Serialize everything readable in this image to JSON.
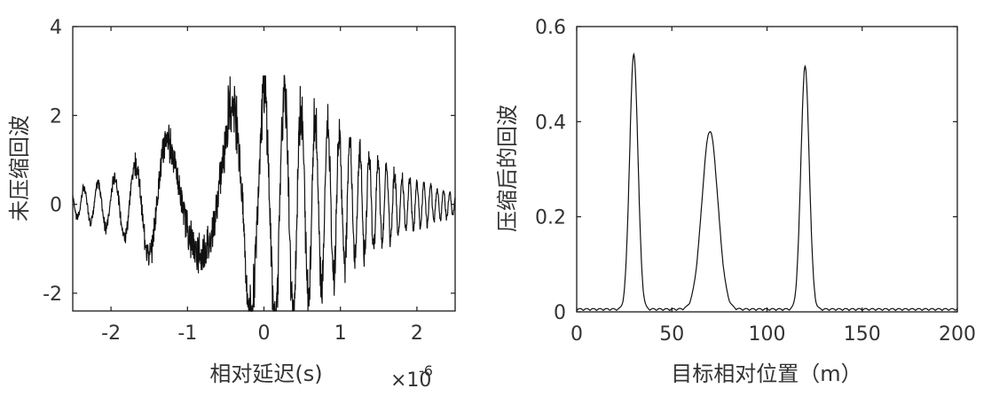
{
  "chart_data": [
    {
      "type": "line",
      "ylabel": "未压缩回波",
      "xlabel": "相对延迟(s)",
      "x_exponent_label": "×10",
      "x_exponent": "-6",
      "xlim": [
        -2.5e-06,
        2.5e-06
      ],
      "ylim": [
        -2.4,
        4
      ],
      "xticks": [
        -2e-06,
        -1e-06,
        0,
        1e-06,
        2e-06
      ],
      "xtick_labels": [
        "-2",
        "-1",
        "0",
        "1",
        "2"
      ],
      "yticks": [
        -2,
        0,
        2,
        4
      ],
      "ytick_labels": [
        "-2",
        "0",
        "2",
        "4"
      ],
      "grid": false,
      "color": "#1a1a1a",
      "series": [
        {
          "description_envelope": [
            [
              -2.5e-06,
              0.3
            ],
            [
              -2e-06,
              0.6
            ],
            [
              -1.7e-06,
              1.0
            ],
            [
              -1.4e-06,
              1.4
            ],
            [
              -1e-06,
              1.9
            ],
            [
              -6e-07,
              2.3
            ],
            [
              -2e-07,
              2.7
            ],
            [
              1e-07,
              2.8
            ],
            [
              3.5e-07,
              2.7
            ],
            [
              6e-07,
              2.3
            ],
            [
              9e-07,
              1.8
            ],
            [
              1.2e-06,
              1.4
            ],
            [
              1.5e-06,
              1.0
            ],
            [
              1.8e-06,
              0.7
            ],
            [
              2.1e-06,
              0.5
            ],
            [
              2.5e-06,
              0.25
            ]
          ]
        }
      ]
    },
    {
      "type": "line",
      "ylabel": "压缩后的回波",
      "xlabel": "目标相对位置（m）",
      "xlim": [
        0,
        200
      ],
      "ylim": [
        0,
        0.6
      ],
      "xticks": [
        0,
        50,
        100,
        150,
        200
      ],
      "xtick_labels": [
        "0",
        "50",
        "100",
        "150",
        "200"
      ],
      "yticks": [
        0,
        0.2,
        0.4,
        0.6
      ],
      "ytick_labels": [
        "0",
        "0.2",
        "0.4",
        "0.6"
      ],
      "grid": false,
      "color": "#1a1a1a",
      "peaks": [
        {
          "x": 30,
          "y": 0.535
        },
        {
          "x": 70,
          "y": 0.375
        },
        {
          "x": 120,
          "y": 0.51
        }
      ]
    }
  ]
}
